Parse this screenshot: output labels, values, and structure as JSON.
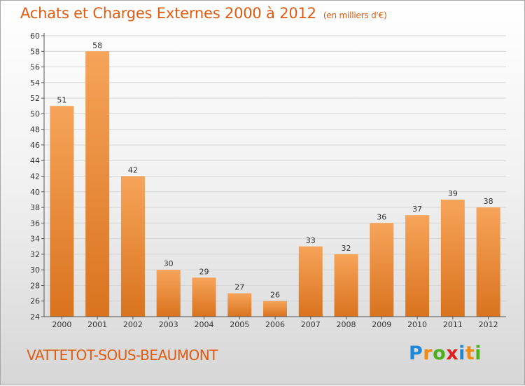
{
  "header": {
    "title": "Achats et Charges Externes 2000 à 2012",
    "subtitle": "(en milliers d'€)"
  },
  "footer": {
    "commune": "VATTETOT-SOUS-BEAUMONT",
    "logo": {
      "text": "Proxiti",
      "letters": [
        "P",
        "r",
        "o",
        "x",
        "i",
        "t",
        "i"
      ],
      "colors": [
        "#1e88d8",
        "#f08a10",
        "#4caf20",
        "#e02020",
        "#1e88d8",
        "#f08a10",
        "#4caf20"
      ]
    }
  },
  "colors": {
    "bar_light": "#f6a45a",
    "bar_dark": "#d9731e",
    "text_accent": "#e05a10",
    "axis": "#555555",
    "grid": "#d6d6d6"
  },
  "chart_data": {
    "type": "bar",
    "title": "Achats et Charges Externes 2000 à 2012",
    "subtitle": "(en milliers d'€)",
    "categories": [
      "2000",
      "2001",
      "2002",
      "2003",
      "2004",
      "2005",
      "2006",
      "2007",
      "2008",
      "2009",
      "2010",
      "2011",
      "2012"
    ],
    "values": [
      51,
      58,
      42,
      30,
      29,
      27,
      26,
      33,
      32,
      36,
      37,
      39,
      38
    ],
    "data_labels": [
      "51",
      "58",
      "42",
      "30",
      "29",
      "27",
      "26",
      "33",
      "32",
      "36",
      "37",
      "39",
      "38"
    ],
    "ylim": [
      24,
      60
    ],
    "yticks": [
      24,
      26,
      28,
      30,
      32,
      34,
      36,
      38,
      40,
      42,
      44,
      46,
      48,
      50,
      52,
      54,
      56,
      58,
      60
    ],
    "ytick_labels": [
      "24",
      "26",
      "28",
      "30",
      "32",
      "34",
      "36",
      "38",
      "40",
      "42",
      "44",
      "46",
      "48",
      "50",
      "52",
      "54",
      "56",
      "58",
      "60"
    ],
    "xlabel": "",
    "ylabel": "",
    "grid": true,
    "legend": "none"
  }
}
